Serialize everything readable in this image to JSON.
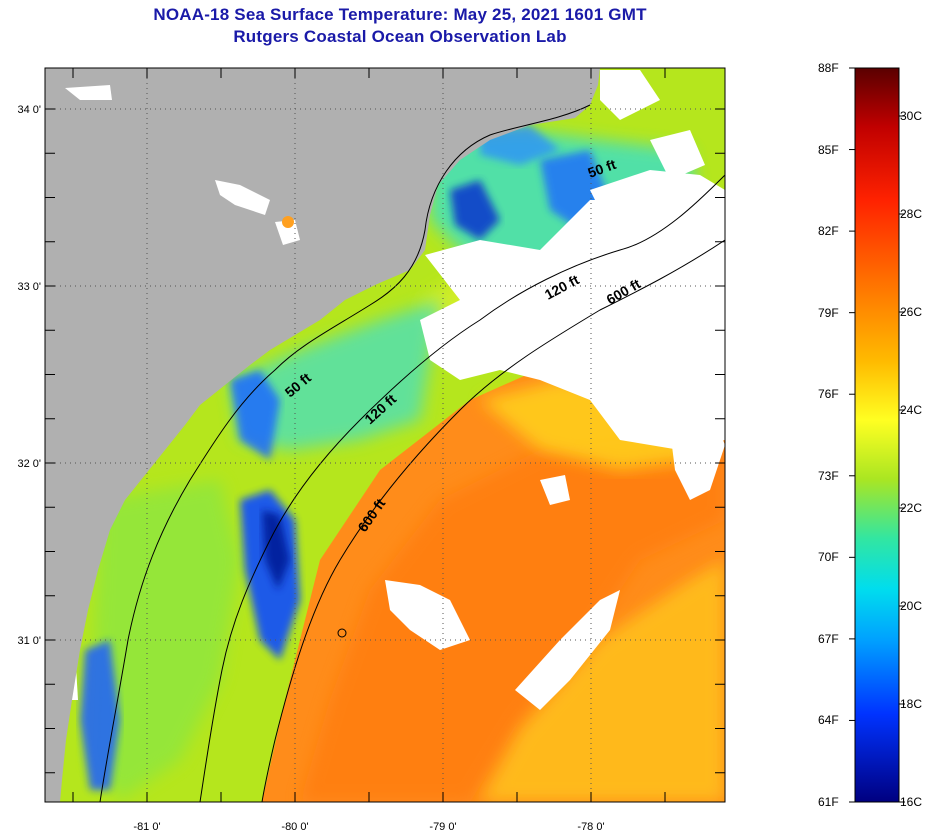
{
  "title": "NOAA-18 Sea Surface Temperature:  May 25, 2021 1601 GMT",
  "subtitle": "Rutgers Coastal Ocean Observation Lab",
  "map": {
    "lat_ticks": [
      {
        "value": 34,
        "label": "34 0'"
      },
      {
        "value": 33,
        "label": "33 0'"
      },
      {
        "value": 32,
        "label": "32 0'"
      },
      {
        "value": 31,
        "label": "31 0'"
      }
    ],
    "lon_ticks": [
      {
        "value": -81,
        "label": "-81 0'"
      },
      {
        "value": -80,
        "label": "-80 0'"
      },
      {
        "value": -79,
        "label": "-79 0'"
      },
      {
        "value": -78,
        "label": "-78 0'"
      }
    ],
    "contour_labels": [
      "50 ft",
      "50 ft",
      "120 ft",
      "120 ft",
      "600 ft",
      "600 ft"
    ],
    "land_color": "#b0b0b0",
    "cloud_color": "#ffffff"
  },
  "colorbar": {
    "fahrenheit": [
      "88F",
      "85F",
      "82F",
      "79F",
      "76F",
      "73F",
      "70F",
      "67F",
      "64F",
      "61F"
    ],
    "celsius": [
      "30C",
      "28C",
      "26C",
      "24C",
      "22C",
      "20C",
      "18C",
      "16C"
    ],
    "colors": [
      "#6b0000",
      "#d00000",
      "#ff3300",
      "#ff8800",
      "#ffcc00",
      "#ffff33",
      "#b5e61d",
      "#33e6a0",
      "#00ccee",
      "#0099ff",
      "#0033ff",
      "#000099"
    ]
  }
}
